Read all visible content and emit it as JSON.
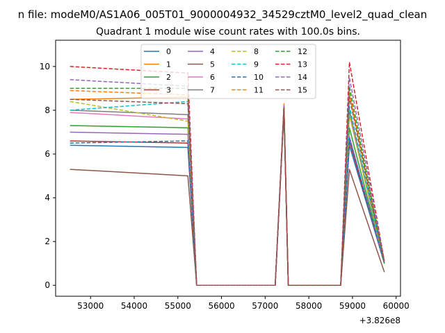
{
  "suptitle": "n file: modeM0/AS1A06_005T01_9000004932_34529cztM0_level2_quad_clean",
  "chart_data": {
    "type": "line",
    "title": "Quadrant 1 module wise count rates with 100.0s bins.",
    "xlabel": "",
    "ylabel": "",
    "x_offset_label": "+3.826e8",
    "xlim": [
      52200,
      60100
    ],
    "ylim": [
      -0.5,
      11.2
    ],
    "xticks": [
      53000,
      54000,
      55000,
      56000,
      57000,
      58000,
      59000,
      60000
    ],
    "yticks": [
      0,
      2,
      4,
      6,
      8,
      10
    ],
    "grid": false,
    "legend_position": "top-center",
    "x": [
      52530,
      55230,
      55430,
      57230,
      57430,
      57530,
      58730,
      58930,
      59730
    ],
    "series": [
      {
        "name": "0",
        "color": "#1f77b4",
        "dash": "solid",
        "values": [
          6.4,
          6.3,
          0,
          0,
          8.1,
          0,
          0,
          6.4,
          1.0
        ]
      },
      {
        "name": "1",
        "color": "#ff7f0e",
        "dash": "solid",
        "values": [
          8.5,
          8.6,
          0,
          0,
          8.2,
          0,
          0,
          8.7,
          1.1
        ]
      },
      {
        "name": "2",
        "color": "#2ca02c",
        "dash": "solid",
        "values": [
          7.3,
          7.2,
          0,
          0,
          8.0,
          0,
          0,
          7.2,
          1.0
        ]
      },
      {
        "name": "3",
        "color": "#d62728",
        "dash": "solid",
        "values": [
          6.6,
          6.5,
          0,
          0,
          8.0,
          0,
          0,
          6.6,
          1.0
        ]
      },
      {
        "name": "4",
        "color": "#9467bd",
        "dash": "solid",
        "values": [
          7.0,
          6.9,
          0,
          0,
          8.0,
          0,
          0,
          6.8,
          1.0
        ]
      },
      {
        "name": "5",
        "color": "#8c564b",
        "dash": "solid",
        "values": [
          5.3,
          5.0,
          0,
          0,
          7.9,
          0,
          0,
          5.3,
          0.6
        ]
      },
      {
        "name": "6",
        "color": "#e377c2",
        "dash": "solid",
        "values": [
          7.9,
          7.6,
          0,
          0,
          8.0,
          0,
          0,
          7.8,
          1.0
        ]
      },
      {
        "name": "7",
        "color": "#7f7f7f",
        "dash": "solid",
        "values": [
          8.0,
          7.8,
          0,
          0,
          8.0,
          0,
          0,
          8.0,
          1.0
        ]
      },
      {
        "name": "8",
        "color": "#bcbd22",
        "dash": "dashed",
        "values": [
          8.4,
          7.5,
          0,
          0,
          8.1,
          0,
          0,
          7.8,
          1.0
        ]
      },
      {
        "name": "9",
        "color": "#17becf",
        "dash": "dashed",
        "values": [
          8.0,
          8.4,
          0,
          0,
          8.1,
          0,
          0,
          8.2,
          1.0
        ]
      },
      {
        "name": "10",
        "color": "#1f77b4",
        "dash": "dashed",
        "values": [
          6.5,
          6.6,
          0,
          0,
          8.1,
          0,
          0,
          6.7,
          1.0
        ]
      },
      {
        "name": "11",
        "color": "#ff7f0e",
        "dash": "dashed",
        "values": [
          8.9,
          8.7,
          0,
          0,
          8.3,
          0,
          0,
          8.9,
          1.1
        ]
      },
      {
        "name": "12",
        "color": "#2ca02c",
        "dash": "dashed",
        "values": [
          9.0,
          9.0,
          0,
          0,
          8.2,
          0,
          0,
          9.1,
          1.0
        ]
      },
      {
        "name": "13",
        "color": "#d62728",
        "dash": "dashed",
        "values": [
          10.0,
          9.7,
          0,
          0,
          8.2,
          0,
          0,
          10.2,
          1.1
        ]
      },
      {
        "name": "14",
        "color": "#9467bd",
        "dash": "dashed",
        "values": [
          9.4,
          9.1,
          0,
          0,
          8.2,
          0,
          0,
          9.5,
          1.1
        ]
      },
      {
        "name": "15",
        "color": "#8c564b",
        "dash": "dashed",
        "values": [
          8.5,
          8.3,
          0,
          0,
          8.1,
          0,
          0,
          8.6,
          1.0
        ]
      }
    ]
  }
}
